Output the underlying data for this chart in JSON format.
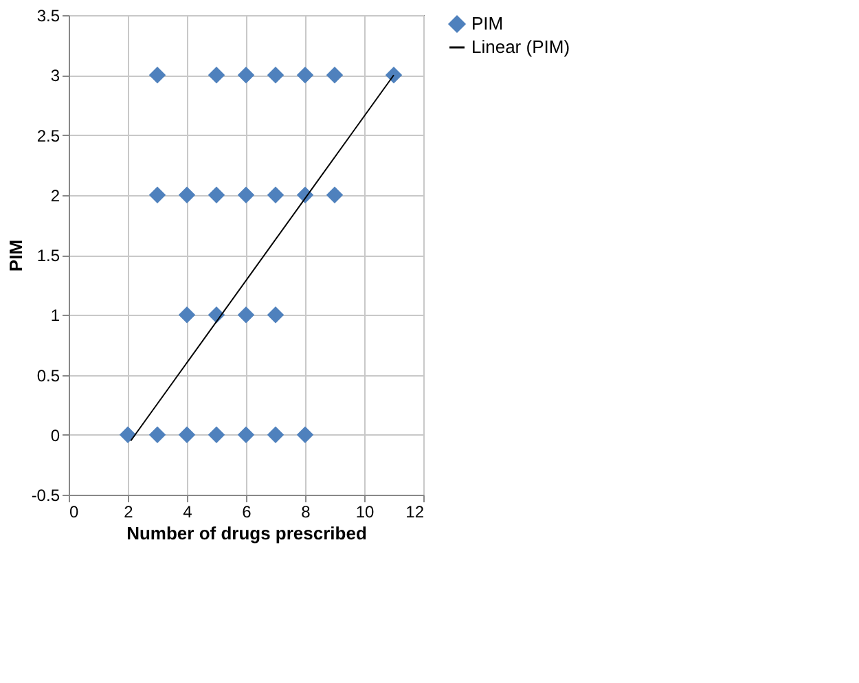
{
  "chart_data": {
    "type": "scatter",
    "xlabel": "Number of drugs prescribed",
    "ylabel": "PIM",
    "series": [
      {
        "name": "PIM",
        "type": "scatter",
        "color": "#4f81bd",
        "marker": "diamond",
        "x": [
          3,
          5,
          6,
          7,
          8,
          9,
          11,
          3,
          4,
          5,
          6,
          7,
          8,
          9,
          4,
          5,
          6,
          7,
          2,
          3,
          4,
          5,
          6,
          7,
          8
        ],
        "values": [
          3,
          3,
          3,
          3,
          3,
          3,
          3,
          2,
          2,
          2,
          2,
          2,
          2,
          2,
          1,
          1,
          1,
          1,
          0,
          0,
          0,
          0,
          0,
          0,
          0
        ]
      },
      {
        "name": "Linear (PIM)",
        "type": "line",
        "color": "#000000",
        "line_style": "solid",
        "x": [
          2.1,
          11
        ],
        "values": [
          -0.05,
          3
        ]
      }
    ],
    "xlim": [
      0,
      12
    ],
    "xticks": [
      0,
      2,
      4,
      6,
      8,
      10,
      12
    ],
    "ylim": [
      -0.5,
      3.5
    ],
    "yticks": [
      -0.5,
      0,
      0.5,
      1,
      1.5,
      2,
      2.5,
      3,
      3.5
    ],
    "grid": true,
    "legend": "right"
  }
}
